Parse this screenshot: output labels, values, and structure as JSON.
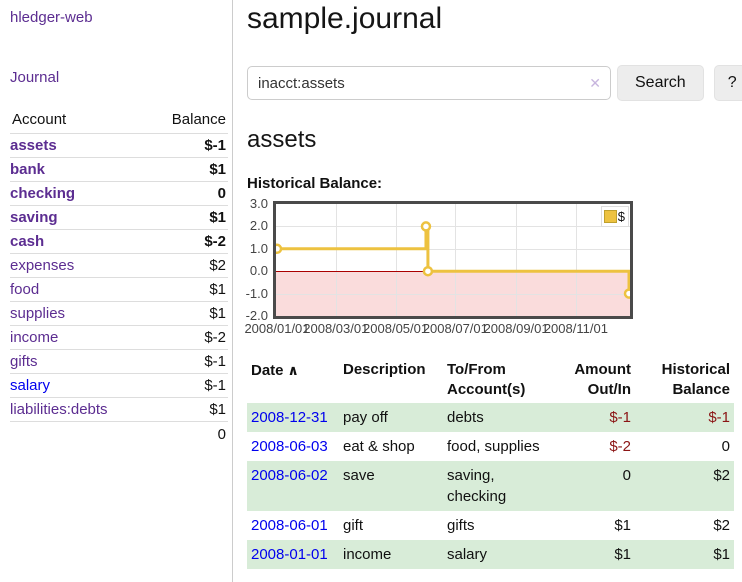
{
  "app": {
    "brand": "hledger-web",
    "nav_journal": "Journal"
  },
  "sidebar": {
    "headers": {
      "account": "Account",
      "balance": "Balance"
    },
    "accounts": [
      {
        "name": "assets",
        "level": 0,
        "balance": "$-1",
        "bold": true,
        "neg": "strong",
        "link": "purple"
      },
      {
        "name": "bank",
        "level": 1,
        "balance": "$1",
        "bold": true,
        "neg": "none",
        "link": "purple"
      },
      {
        "name": "checking",
        "level": 2,
        "balance": "0",
        "bold": true,
        "neg": "none",
        "link": "purple"
      },
      {
        "name": "saving",
        "level": 2,
        "balance": "$1",
        "bold": true,
        "neg": "none",
        "link": "purple"
      },
      {
        "name": "cash",
        "level": 1,
        "balance": "$-2",
        "bold": true,
        "neg": "strong",
        "link": "purple"
      },
      {
        "name": "expenses",
        "level": 0,
        "balance": "$2",
        "bold": false,
        "neg": "none",
        "link": "purple"
      },
      {
        "name": "food",
        "level": 1,
        "balance": "$1",
        "bold": false,
        "neg": "none",
        "link": "purple"
      },
      {
        "name": "supplies",
        "level": 1,
        "balance": "$1",
        "bold": false,
        "neg": "none",
        "link": "purple"
      },
      {
        "name": "income",
        "level": 0,
        "balance": "$-2",
        "bold": false,
        "neg": "weak",
        "link": "purple"
      },
      {
        "name": "gifts",
        "level": 1,
        "balance": "$-1",
        "bold": false,
        "neg": "weak",
        "link": "purple"
      },
      {
        "name": "salary",
        "level": 1,
        "balance": "$-1",
        "bold": false,
        "neg": "weak",
        "link": "blue"
      },
      {
        "name": "liabilities:debts",
        "level": 0,
        "balance": "$1",
        "bold": false,
        "neg": "none",
        "link": "purple"
      }
    ],
    "total": "0"
  },
  "header": {
    "title": "sample.journal"
  },
  "search": {
    "value": "inacct:assets",
    "clear_icon": "✕",
    "button_label": "Search",
    "help_label": "?"
  },
  "account_page": {
    "heading": "assets",
    "chart_label": "Historical Balance:"
  },
  "chart_data": {
    "type": "line",
    "step": true,
    "title": "Historical Balance",
    "series": [
      {
        "name": "$",
        "color": "#edc240",
        "points": [
          [
            "2008-01-01",
            1
          ],
          [
            "2008-06-01",
            2
          ],
          [
            "2008-06-03",
            0
          ],
          [
            "2008-12-31",
            -1
          ]
        ]
      }
    ],
    "ylim": [
      -2,
      3
    ],
    "y_ticks": [
      "3.0",
      "2.0",
      "1.0",
      "0.0",
      "-1.0",
      "-2.0"
    ],
    "x_ticks": [
      "2008/01/01",
      "2008/03/01",
      "2008/05/01",
      "2008/07/01",
      "2008/09/01",
      "2008/11/01"
    ],
    "legend_position": "top-right",
    "grid": true,
    "negative_region_color": "#fadcdc",
    "zero_line_color": "#aa0000"
  },
  "register": {
    "sort_icon": "∧",
    "headers": [
      "Date",
      "Description",
      "To/From Account(s)",
      "Amount Out/In",
      "Historical Balance"
    ],
    "rows": [
      {
        "date": "2008-12-31",
        "description": "pay off",
        "accounts": "debts",
        "amount": "$-1",
        "balance": "$-1",
        "amount_negative": true,
        "balance_negative": true
      },
      {
        "date": "2008-06-03",
        "description": "eat & shop",
        "accounts": "food, supplies",
        "amount": "$-2",
        "balance": "0",
        "amount_negative": true,
        "balance_negative": false
      },
      {
        "date": "2008-06-02",
        "description": "save",
        "accounts": "saving, checking",
        "amount": "0",
        "balance": "$2",
        "amount_negative": false,
        "balance_negative": false
      },
      {
        "date": "2008-06-01",
        "description": "gift",
        "accounts": "gifts",
        "amount": "$1",
        "balance": "$2",
        "amount_negative": false,
        "balance_negative": false
      },
      {
        "date": "2008-01-01",
        "description": "income",
        "accounts": "salary",
        "amount": "$1",
        "balance": "$1",
        "amount_negative": false,
        "balance_negative": false
      }
    ]
  },
  "colors": {
    "accent_purple": "#5c2d91",
    "link_blue": "#0000ee",
    "negative_strong": "#8b1414",
    "negative_weak": "#c46565",
    "row_shade_green": "#d8ecd8",
    "series_gold": "#edc240"
  }
}
